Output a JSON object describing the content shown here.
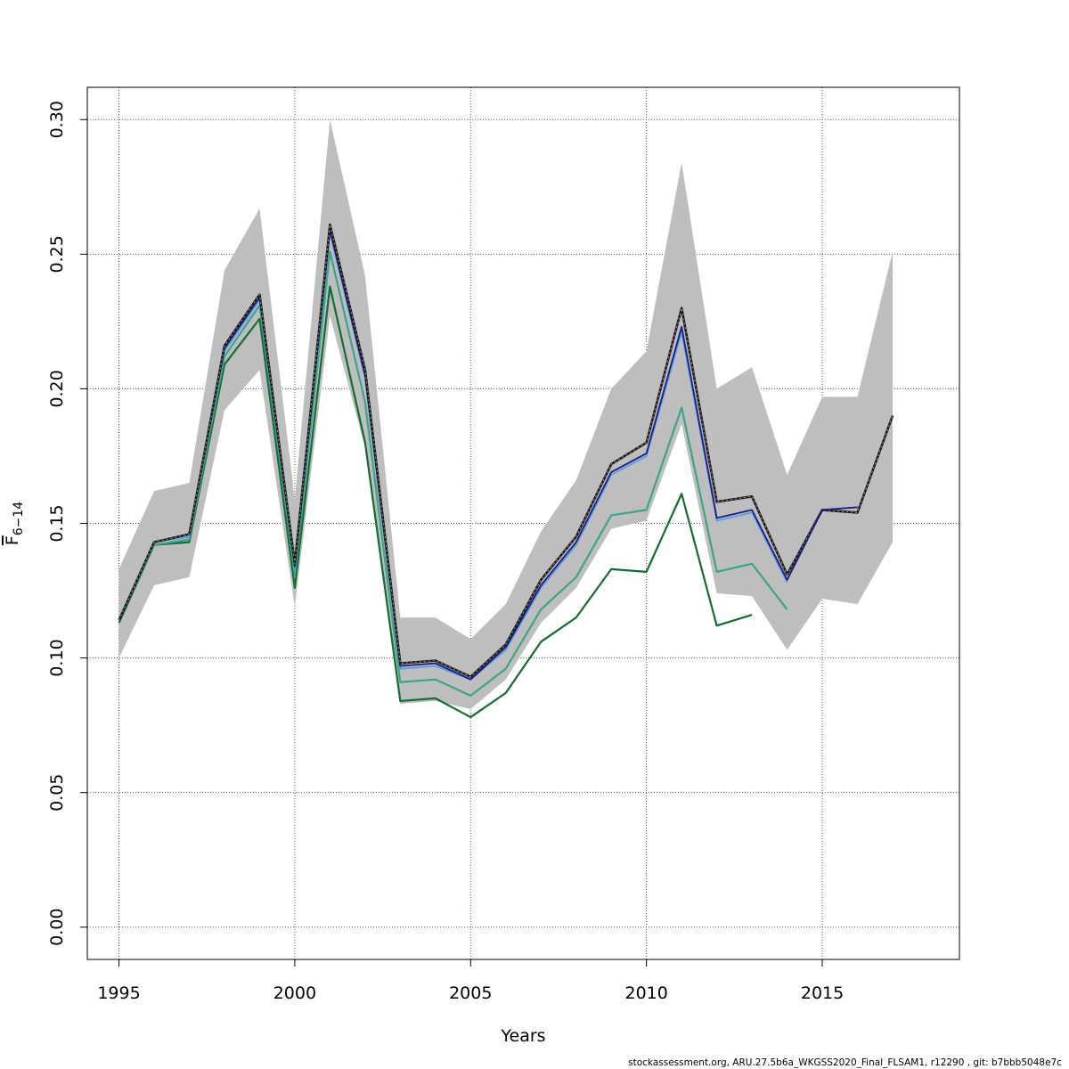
{
  "chart_data": {
    "type": "line",
    "title": "",
    "xlabel": "Years",
    "ylabel_main": "F",
    "ylabel_sub": "6−14",
    "xlim": [
      1994.1,
      2018.9
    ],
    "ylim": [
      -0.012,
      0.312
    ],
    "x_ticks": [
      1995,
      2000,
      2005,
      2010,
      2015
    ],
    "y_ticks": [
      0.0,
      0.05,
      0.1,
      0.15,
      0.2,
      0.25,
      0.3
    ],
    "y_tick_labels": [
      "0.00",
      "0.05",
      "0.10",
      "0.15",
      "0.20",
      "0.25",
      "0.30"
    ],
    "grid": true,
    "confidence_band": {
      "color": "#bebebe",
      "x": [
        1995,
        1996,
        1997,
        1998,
        1999,
        2000,
        2001,
        2002,
        2003,
        2004,
        2005,
        2006,
        2007,
        2008,
        2009,
        2010,
        2011,
        2012,
        2013,
        2014,
        2015,
        2016,
        2017
      ],
      "lower": [
        0.1,
        0.127,
        0.13,
        0.192,
        0.207,
        0.119,
        0.227,
        0.178,
        0.083,
        0.084,
        0.081,
        0.092,
        0.113,
        0.126,
        0.148,
        0.151,
        0.187,
        0.124,
        0.123,
        0.103,
        0.122,
        0.12,
        0.143
      ],
      "upper": [
        0.133,
        0.162,
        0.165,
        0.244,
        0.267,
        0.159,
        0.3,
        0.242,
        0.115,
        0.115,
        0.107,
        0.12,
        0.147,
        0.166,
        0.2,
        0.214,
        0.284,
        0.2,
        0.208,
        0.168,
        0.197,
        0.197,
        0.251
      ]
    },
    "series": [
      {
        "color": "#1b1b1b",
        "dashed_overlay": true,
        "width": 2.6,
        "x": [
          1995,
          1996,
          1997,
          1998,
          1999,
          2000,
          2001,
          2002,
          2003,
          2004,
          2005,
          2006,
          2007,
          2008,
          2009,
          2010,
          2011,
          2012,
          2013,
          2014,
          2015,
          2016,
          2017
        ],
        "values": [
          0.114,
          0.143,
          0.146,
          0.216,
          0.235,
          0.135,
          0.261,
          0.207,
          0.098,
          0.099,
          0.093,
          0.105,
          0.129,
          0.145,
          0.172,
          0.18,
          0.23,
          0.158,
          0.16,
          0.131,
          0.155,
          0.154,
          0.19
        ]
      },
      {
        "color": "#1a1a8c",
        "width": 1.8,
        "x": [
          1995,
          1996,
          1997,
          1998,
          1999,
          2000,
          2001,
          2002,
          2003,
          2004,
          2005,
          2006,
          2007,
          2008,
          2009,
          2010,
          2011,
          2012,
          2013,
          2014,
          2015,
          2016
        ],
        "values": [
          0.114,
          0.143,
          0.146,
          0.215,
          0.234,
          0.134,
          0.259,
          0.205,
          0.097,
          0.098,
          0.092,
          0.104,
          0.127,
          0.143,
          0.169,
          0.176,
          0.223,
          0.152,
          0.155,
          0.129,
          0.155,
          0.156
        ]
      },
      {
        "color": "#56a0e0",
        "width": 1.8,
        "x": [
          1995,
          1996,
          1997,
          1998,
          1999,
          2000,
          2001,
          2002,
          2003,
          2004,
          2005,
          2006,
          2007,
          2008,
          2009,
          2010,
          2011,
          2012,
          2013,
          2014
        ],
        "values": [
          0.114,
          0.143,
          0.145,
          0.214,
          0.233,
          0.133,
          0.258,
          0.204,
          0.096,
          0.097,
          0.092,
          0.103,
          0.126,
          0.142,
          0.168,
          0.175,
          0.221,
          0.151,
          0.154,
          0.128
        ]
      },
      {
        "color": "#3aa58a",
        "width": 2.2,
        "x": [
          1995,
          1996,
          1997,
          1998,
          1999,
          2000,
          2001,
          2002,
          2003,
          2004,
          2005,
          2006,
          2007,
          2008,
          2009,
          2010,
          2011,
          2012,
          2013,
          2014
        ],
        "values": [
          0.114,
          0.142,
          0.144,
          0.212,
          0.231,
          0.131,
          0.251,
          0.195,
          0.091,
          0.092,
          0.086,
          0.096,
          0.118,
          0.13,
          0.153,
          0.155,
          0.193,
          0.132,
          0.135,
          0.118
        ]
      },
      {
        "color": "#0f6e30",
        "width": 2.2,
        "x": [
          1995,
          1996,
          1997,
          1998,
          1999,
          2000,
          2001,
          2002,
          2003,
          2004,
          2005,
          2006,
          2007,
          2008,
          2009,
          2010,
          2011,
          2012,
          2013
        ],
        "values": [
          0.113,
          0.142,
          0.143,
          0.209,
          0.226,
          0.126,
          0.238,
          0.18,
          0.084,
          0.085,
          0.078,
          0.087,
          0.106,
          0.115,
          0.133,
          0.132,
          0.161,
          0.112,
          0.116
        ]
      }
    ],
    "footer": "stockassessment.org, ARU.27.5b6a_WKGSS2020_Final_FLSAM1, r12290 , git: b7bbb5048e7c"
  }
}
